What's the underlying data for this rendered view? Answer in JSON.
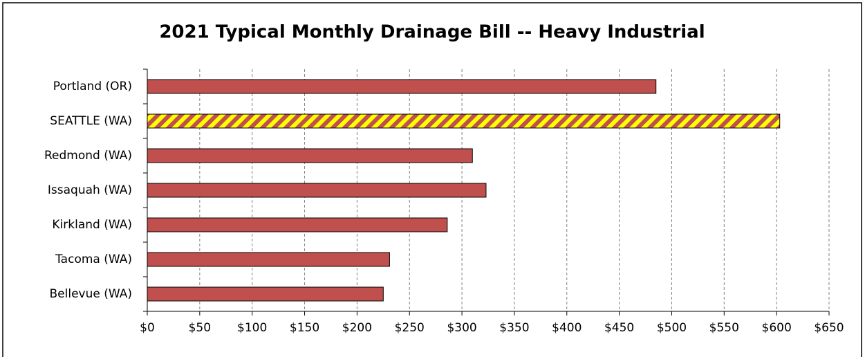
{
  "chart_data": {
    "type": "hbar",
    "title": "2021 Typical Monthly Drainage Bill -- Heavy Industrial",
    "categories": [
      "Portland (OR)",
      "SEATTLE (WA)",
      "Redmond (WA)",
      "Issaquah (WA)",
      "Kirkland (WA)",
      "Tacoma (WA)",
      "Bellevue (WA)"
    ],
    "values": [
      485,
      603,
      310,
      323,
      286,
      231,
      225
    ],
    "color": "#c0504d",
    "hatch": [
      false,
      true,
      false,
      false,
      false,
      false,
      false
    ],
    "hatch_color": "#ffff00",
    "xlim": [
      0,
      650
    ],
    "xticks": [
      {
        "value": 0,
        "label": "$0"
      },
      {
        "value": 50,
        "label": "$50"
      },
      {
        "value": 100,
        "label": "$100"
      },
      {
        "value": 150,
        "label": "$150"
      },
      {
        "value": 200,
        "label": "$200"
      },
      {
        "value": 250,
        "label": "$250"
      },
      {
        "value": 300,
        "label": "$300"
      },
      {
        "value": 350,
        "label": "$350"
      },
      {
        "value": 400,
        "label": "$400"
      },
      {
        "value": 450,
        "label": "$450"
      },
      {
        "value": 500,
        "label": "$500"
      },
      {
        "value": 550,
        "label": "$550"
      },
      {
        "value": 600,
        "label": "$600"
      },
      {
        "value": 650,
        "label": "$650"
      }
    ],
    "grid": true
  }
}
